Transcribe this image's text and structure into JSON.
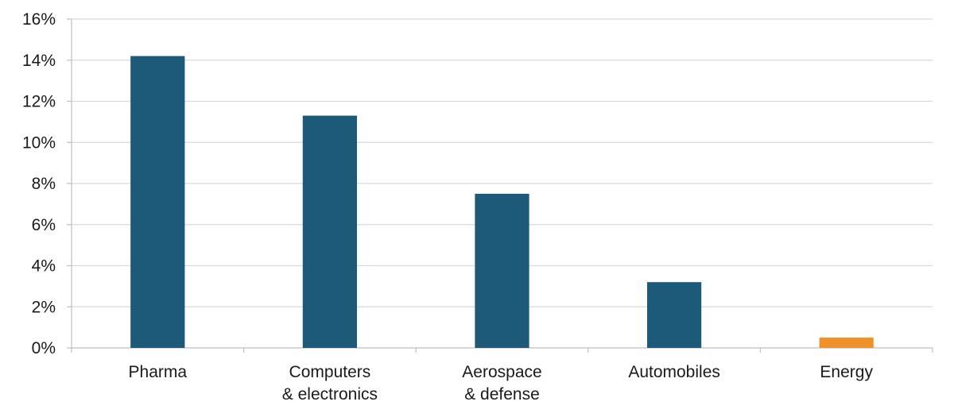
{
  "chart_data": {
    "type": "bar",
    "title": "",
    "xlabel": "",
    "ylabel": "",
    "ylim": [
      0,
      16
    ],
    "y_ticks": [
      "0%",
      "2%",
      "4%",
      "6%",
      "8%",
      "10%",
      "12%",
      "14%",
      "16%"
    ],
    "y_tick_values": [
      0,
      2,
      4,
      6,
      8,
      10,
      12,
      14,
      16
    ],
    "grid": "horizontal",
    "legend": "none",
    "categories": [
      [
        "Pharma"
      ],
      [
        "Computers",
        "& electronics"
      ],
      [
        "Aerospace",
        "& defense"
      ],
      [
        "Automobiles"
      ],
      [
        "Energy"
      ]
    ],
    "values": [
      14.2,
      11.3,
      7.5,
      3.2,
      0.5
    ],
    "colors": [
      "#1d5a7a",
      "#1d5a7a",
      "#1d5a7a",
      "#1d5a7a",
      "#f0922b"
    ],
    "grid_color": "#d9d9d9",
    "axis_color": "#bfbfbf"
  }
}
